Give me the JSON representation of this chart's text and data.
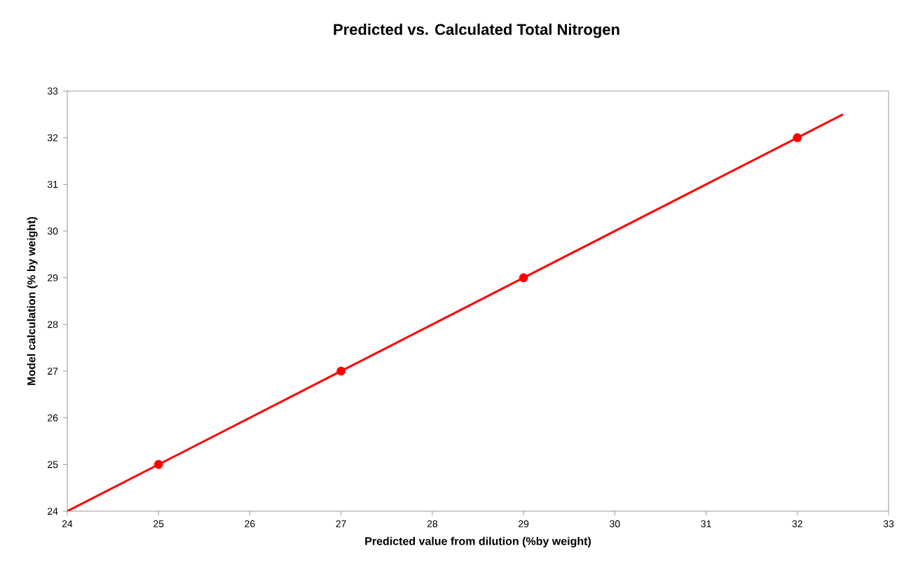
{
  "chart_data": {
    "type": "line",
    "title": "Predicted vs. Calculated Total Nitrogen",
    "xlabel": "Predicted value from dilution (%by weight)",
    "ylabel": "Model calculation (% by weight)",
    "series": [
      {
        "color": "#ff0000",
        "x": [
          24,
          32.5
        ],
        "values": [
          24,
          32.5
        ],
        "marker": "none"
      },
      {
        "type": "scatter",
        "color": "#ff0000",
        "x": [
          25,
          27,
          29,
          32
        ],
        "values": [
          25,
          27,
          29,
          32
        ],
        "marker": "circle"
      }
    ],
    "xlim": [
      24,
      33
    ],
    "ylim": [
      24,
      33
    ],
    "xticks": [
      24,
      25,
      26,
      27,
      28,
      29,
      30,
      31,
      32,
      33
    ],
    "yticks": [
      24,
      25,
      26,
      27,
      28,
      29,
      30,
      31,
      32,
      33
    ],
    "grid": false
  }
}
